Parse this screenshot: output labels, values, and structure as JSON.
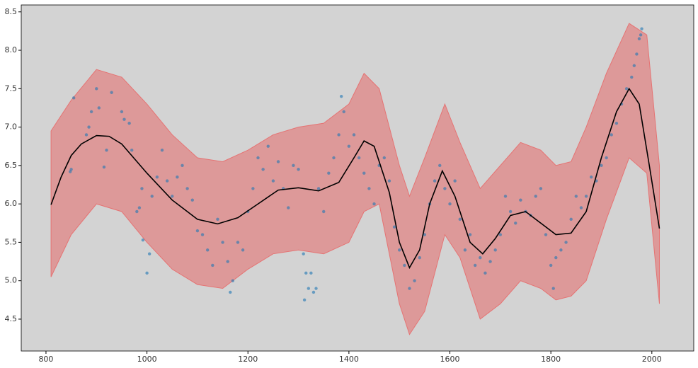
{
  "chart_data": {
    "type": "scatter",
    "background": "#d3d3d3",
    "xlim": [
      751,
      2083
    ],
    "ylim": [
      4.085,
      8.59
    ],
    "xticks": [
      800,
      1000,
      1200,
      1400,
      1600,
      1800,
      2000
    ],
    "yticks": [
      4.5,
      {
        "value": 5,
        "label": "5.0"
      },
      5.5,
      {
        "value": 6,
        "label": "6.0"
      },
      6.5,
      {
        "value": 7,
        "label": "7.0"
      },
      7.5,
      {
        "value": 8,
        "label": "8.0"
      },
      8.5
    ],
    "band": {
      "color": "#e57373",
      "x": [
        810,
        850,
        900,
        950,
        1000,
        1050,
        1100,
        1150,
        1200,
        1250,
        1300,
        1350,
        1400,
        1430,
        1460,
        1500,
        1520,
        1550,
        1590,
        1620,
        1660,
        1700,
        1740,
        1780,
        1810,
        1840,
        1870,
        1910,
        1955,
        1990,
        2015
      ],
      "upper": [
        6.95,
        7.35,
        7.75,
        7.65,
        7.3,
        6.9,
        6.6,
        6.55,
        6.7,
        6.9,
        7.0,
        7.05,
        7.3,
        7.7,
        7.5,
        6.5,
        6.1,
        6.6,
        7.3,
        6.8,
        6.2,
        6.5,
        6.8,
        6.7,
        6.5,
        6.55,
        7.0,
        7.7,
        8.35,
        8.2,
        6.5
      ],
      "lower": [
        5.05,
        5.6,
        6.0,
        5.9,
        5.5,
        5.15,
        4.95,
        4.9,
        5.15,
        5.35,
        5.4,
        5.35,
        5.5,
        5.9,
        6.0,
        4.7,
        4.3,
        4.6,
        5.6,
        5.3,
        4.5,
        4.7,
        5.0,
        4.9,
        4.75,
        4.8,
        5.0,
        5.8,
        6.6,
        6.4,
        4.7
      ]
    },
    "points": {
      "color": "#1f77b4",
      "x": [
        848,
        850,
        855,
        880,
        885,
        890,
        900,
        905,
        915,
        920,
        930,
        950,
        955,
        965,
        970,
        980,
        985,
        990,
        992,
        1000,
        1005,
        1010,
        1020,
        1030,
        1040,
        1050,
        1060,
        1070,
        1080,
        1090,
        1100,
        1110,
        1120,
        1130,
        1140,
        1150,
        1160,
        1165,
        1170,
        1180,
        1190,
        1200,
        1210,
        1220,
        1230,
        1240,
        1250,
        1260,
        1270,
        1280,
        1290,
        1300,
        1310,
        1312,
        1315,
        1320,
        1325,
        1330,
        1335,
        1340,
        1350,
        1360,
        1370,
        1380,
        1385,
        1390,
        1400,
        1410,
        1420,
        1430,
        1440,
        1450,
        1460,
        1470,
        1480,
        1490,
        1500,
        1510,
        1520,
        1530,
        1540,
        1550,
        1560,
        1570,
        1580,
        1590,
        1600,
        1610,
        1620,
        1630,
        1640,
        1650,
        1660,
        1670,
        1680,
        1690,
        1700,
        1710,
        1720,
        1730,
        1740,
        1750,
        1760,
        1770,
        1780,
        1790,
        1800,
        1805,
        1810,
        1820,
        1830,
        1840,
        1850,
        1860,
        1870,
        1880,
        1890,
        1900,
        1910,
        1920,
        1930,
        1940,
        1950,
        1960,
        1965,
        1970,
        1975,
        1978,
        1980
      ],
      "y": [
        6.42,
        6.45,
        7.38,
        6.9,
        7.0,
        7.2,
        7.5,
        7.25,
        6.48,
        6.7,
        7.45,
        7.2,
        7.1,
        7.05,
        6.7,
        5.9,
        5.95,
        6.2,
        5.53,
        5.1,
        5.35,
        6.1,
        6.35,
        6.7,
        6.3,
        6.1,
        6.35,
        6.5,
        6.2,
        6.05,
        5.65,
        5.6,
        5.4,
        5.2,
        5.8,
        5.5,
        5.25,
        4.85,
        5.0,
        5.5,
        5.4,
        5.9,
        6.2,
        6.6,
        6.45,
        6.75,
        6.3,
        6.55,
        6.2,
        5.95,
        6.5,
        6.45,
        5.35,
        4.75,
        5.1,
        4.9,
        5.1,
        4.85,
        4.9,
        6.2,
        5.9,
        6.4,
        6.6,
        6.9,
        7.4,
        7.2,
        6.75,
        6.9,
        6.6,
        6.4,
        6.2,
        6.0,
        6.5,
        6.6,
        6.3,
        5.7,
        5.4,
        5.2,
        4.9,
        5.0,
        5.3,
        5.6,
        6.0,
        6.3,
        6.5,
        6.2,
        6.0,
        6.3,
        5.8,
        5.4,
        5.6,
        5.2,
        5.3,
        5.1,
        5.25,
        5.4,
        5.6,
        6.1,
        5.9,
        5.75,
        6.05,
        5.9,
        5.85,
        6.1,
        6.2,
        5.6,
        5.2,
        4.9,
        5.3,
        5.4,
        5.5,
        5.8,
        6.1,
        5.95,
        6.1,
        6.35,
        6.3,
        6.5,
        6.6,
        6.9,
        7.05,
        7.3,
        7.5,
        7.65,
        7.8,
        7.95,
        8.15,
        8.2,
        8.28
      ]
    },
    "mean": {
      "color": "#000000",
      "x": [
        810,
        830,
        850,
        870,
        900,
        925,
        950,
        1000,
        1050,
        1100,
        1140,
        1180,
        1220,
        1260,
        1300,
        1340,
        1380,
        1410,
        1430,
        1450,
        1480,
        1500,
        1520,
        1540,
        1560,
        1585,
        1610,
        1640,
        1665,
        1690,
        1720,
        1750,
        1780,
        1810,
        1840,
        1870,
        1900,
        1930,
        1955,
        1975,
        1995,
        2015
      ],
      "values": [
        5.99,
        6.35,
        6.63,
        6.78,
        6.89,
        6.88,
        6.78,
        6.4,
        6.05,
        5.8,
        5.74,
        5.82,
        6.0,
        6.18,
        6.21,
        6.17,
        6.28,
        6.6,
        6.82,
        6.75,
        6.15,
        5.5,
        5.17,
        5.4,
        6.0,
        6.43,
        6.1,
        5.5,
        5.35,
        5.55,
        5.85,
        5.9,
        5.75,
        5.6,
        5.62,
        5.9,
        6.6,
        7.2,
        7.5,
        7.3,
        6.5,
        5.68
      ]
    }
  }
}
